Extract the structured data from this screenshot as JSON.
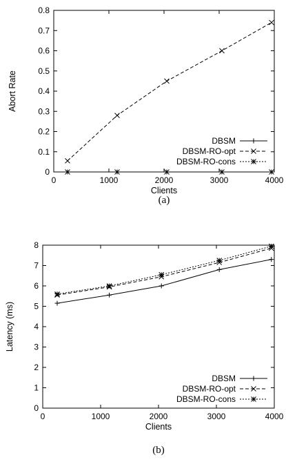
{
  "chart_data": [
    {
      "type": "line",
      "xlabel": "Clients",
      "ylabel": "Abort Rate",
      "xlim": [
        0,
        4000
      ],
      "ylim": [
        0,
        0.8
      ],
      "xticks": [
        "0",
        "1000",
        "2000",
        "3000",
        "4000"
      ],
      "yticks": [
        "0",
        "0.1",
        "0.2",
        "0.3",
        "0.4",
        "0.5",
        "0.6",
        "0.7",
        "0.8"
      ],
      "legend_position": "bottom-right",
      "caption": "(a)",
      "series": [
        {
          "name": "DBSM",
          "style": "solid",
          "marker": "+",
          "x": [
            250,
            1150,
            2050,
            3050,
            3950
          ],
          "y": [
            0,
            0,
            0,
            0,
            0
          ]
        },
        {
          "name": "DBSM-RO-opt",
          "style": "dashed",
          "marker": "x",
          "x": [
            250,
            1150,
            2050,
            3050,
            3950
          ],
          "y": [
            0.055,
            0.28,
            0.45,
            0.6,
            0.74
          ]
        },
        {
          "name": "DBSM-RO-cons",
          "style": "dotted",
          "marker": "*",
          "x": [
            250,
            1150,
            2050,
            3050,
            3950
          ],
          "y": [
            0,
            0,
            0,
            0,
            0
          ]
        }
      ]
    },
    {
      "type": "line",
      "xlabel": "Clients",
      "ylabel": "Latency (ms)",
      "xlim": [
        0,
        4000
      ],
      "ylim": [
        0,
        8
      ],
      "xticks": [
        "0",
        "1000",
        "2000",
        "3000",
        "4000"
      ],
      "yticks": [
        "0",
        "1",
        "2",
        "3",
        "4",
        "5",
        "6",
        "7",
        "8"
      ],
      "legend_position": "bottom-right",
      "caption": "(b)",
      "series": [
        {
          "name": "DBSM",
          "style": "solid",
          "marker": "+",
          "x": [
            250,
            1150,
            2050,
            3050,
            3950
          ],
          "y": [
            5.15,
            5.55,
            6.0,
            6.8,
            7.3
          ]
        },
        {
          "name": "DBSM-RO-opt",
          "style": "dashed",
          "marker": "x",
          "x": [
            250,
            1150,
            2050,
            3050,
            3950
          ],
          "y": [
            5.55,
            5.95,
            6.45,
            7.15,
            7.85
          ]
        },
        {
          "name": "DBSM-RO-cons",
          "style": "dotted",
          "marker": "*",
          "x": [
            250,
            1150,
            2050,
            3050,
            3950
          ],
          "y": [
            5.6,
            6.0,
            6.55,
            7.25,
            7.95
          ]
        }
      ]
    }
  ]
}
